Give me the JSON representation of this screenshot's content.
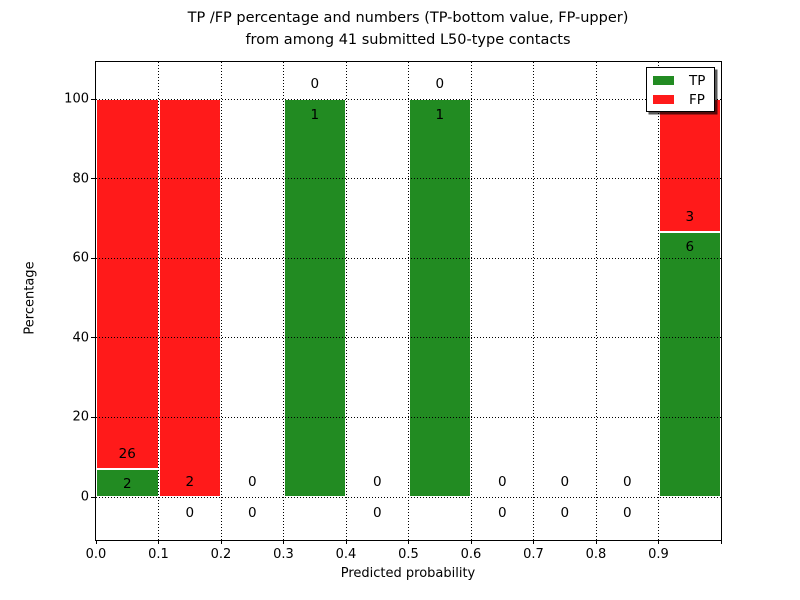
{
  "title": {
    "line1": "TP /FP percentage and numbers (TP-bottom value, FP-upper)",
    "line2": "from among 41 submitted L50-type contacts"
  },
  "axes": {
    "xlabel": "Predicted probability",
    "ylabel": "Percentage"
  },
  "legend": {
    "items": [
      {
        "label": "TP",
        "color_key": "tp"
      },
      {
        "label": "FP",
        "color_key": "fp"
      }
    ]
  },
  "colors": {
    "tp": "#228b22",
    "fp": "#ff1a1a",
    "grid": "#000000",
    "frame": "#000000",
    "background": "#ffffff"
  },
  "chart_data": {
    "type": "bar",
    "stacked": true,
    "title": "TP /FP percentage and numbers (TP-bottom value, FP-upper) from among 41 submitted L50-type contacts",
    "xlabel": "Predicted probability",
    "ylabel": "Percentage",
    "xlim": [
      0.0,
      1.0
    ],
    "ylim_approx": [
      -11,
      110
    ],
    "grid": true,
    "grid_style": "dotted",
    "legend_position": "upper right",
    "x_ticks": [
      "0.0",
      "0.1",
      "0.2",
      "0.3",
      "0.4",
      "0.5",
      "0.6",
      "0.7",
      "0.8",
      "0.9"
    ],
    "y_ticks": [
      0,
      20,
      40,
      60,
      80,
      100
    ],
    "bin_width": 0.1,
    "series": [
      {
        "name": "TP",
        "position": "bottom",
        "color_key": "tp"
      },
      {
        "name": "FP",
        "position": "top",
        "color_key": "fp"
      }
    ],
    "bins": [
      {
        "x0": 0.0,
        "x1": 0.1,
        "tp": 2,
        "fp": 26,
        "tp_pct": 7.14
      },
      {
        "x0": 0.1,
        "x1": 0.2,
        "tp": 0,
        "fp": 2,
        "tp_pct": 0
      },
      {
        "x0": 0.2,
        "x1": 0.3,
        "tp": 0,
        "fp": 0,
        "tp_pct": 0
      },
      {
        "x0": 0.3,
        "x1": 0.4,
        "tp": 1,
        "fp": 0,
        "tp_pct": 100
      },
      {
        "x0": 0.4,
        "x1": 0.5,
        "tp": 0,
        "fp": 0,
        "tp_pct": 0
      },
      {
        "x0": 0.5,
        "x1": 0.6,
        "tp": 1,
        "fp": 0,
        "tp_pct": 100
      },
      {
        "x0": 0.6,
        "x1": 0.7,
        "tp": 0,
        "fp": 0,
        "tp_pct": 0
      },
      {
        "x0": 0.7,
        "x1": 0.8,
        "tp": 0,
        "fp": 0,
        "tp_pct": 0
      },
      {
        "x0": 0.8,
        "x1": 0.9,
        "tp": 0,
        "fp": 0,
        "tp_pct": 0
      },
      {
        "x0": 0.9,
        "x1": 1.0,
        "tp": 6,
        "fp": 3,
        "tp_pct": 66.67
      }
    ]
  }
}
